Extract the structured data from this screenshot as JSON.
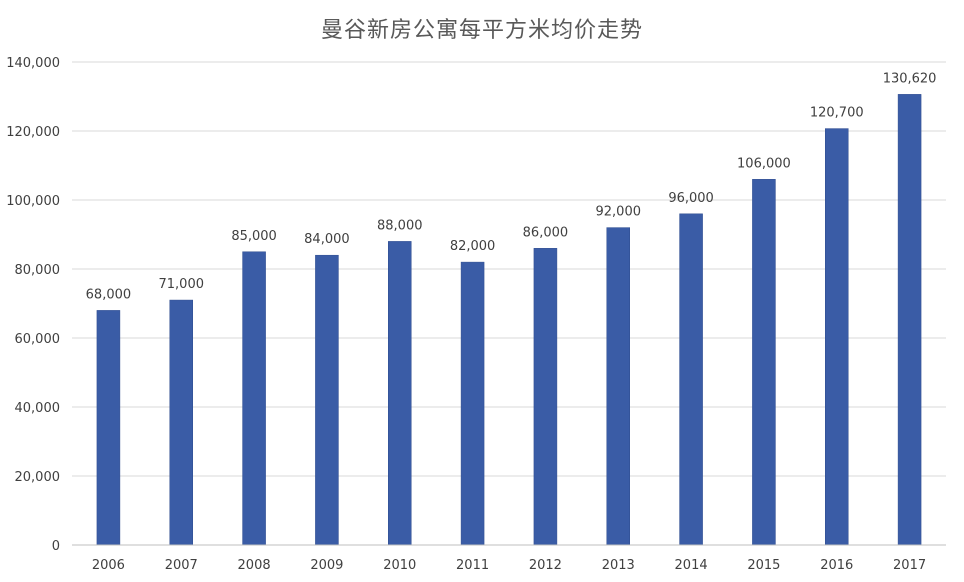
{
  "chart_data": {
    "type": "bar",
    "title": "曼谷新房公寓每平方米均价走势",
    "xlabel": "",
    "ylabel": "",
    "categories": [
      "2006",
      "2007",
      "2008",
      "2009",
      "2010",
      "2011",
      "2012",
      "2013",
      "2014",
      "2015",
      "2016",
      "2017"
    ],
    "values": [
      68000,
      71000,
      85000,
      84000,
      88000,
      82000,
      86000,
      92000,
      96000,
      106000,
      120700,
      130620
    ],
    "data_labels": [
      "68,000",
      "71,000",
      "85,000",
      "84,000",
      "88,000",
      "82,000",
      "86,000",
      "92,000",
      "96,000",
      "106,000",
      "120,700",
      "130,620"
    ],
    "ylim": [
      0,
      140000
    ],
    "y_ticks": [
      0,
      20000,
      40000,
      60000,
      80000,
      100000,
      120000,
      140000
    ],
    "y_tick_labels": [
      "0",
      "20,000",
      "40,000",
      "60,000",
      "80,000",
      "100,000",
      "120,000",
      "140,000"
    ],
    "grid": true,
    "legend": "none",
    "colors": {
      "bar": "#3a5ca6",
      "bar_edge": "#2f4d8f",
      "grid": "#d9d9d9",
      "axis_text": "#404040",
      "title": "#595959"
    }
  }
}
